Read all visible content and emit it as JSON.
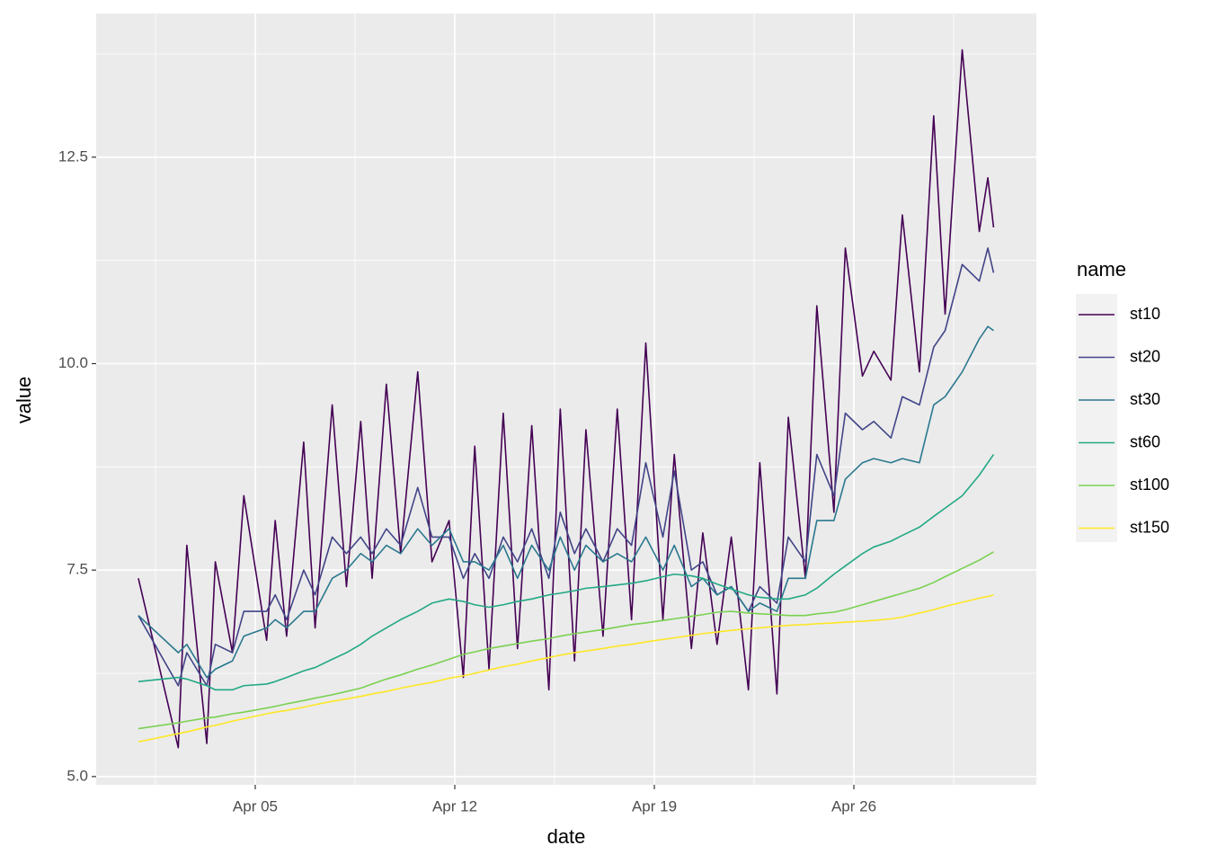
{
  "chart_data": {
    "type": "line",
    "x_label": "date",
    "y_label": "value",
    "legend_title": "name",
    "legend_position": "right",
    "grid": true,
    "xlim": [
      -0.58,
      32.4
    ],
    "ylim": [
      4.9,
      14.24
    ],
    "xticks": [
      {
        "value": 5,
        "label": "Apr 05"
      },
      {
        "value": 12,
        "label": "Apr 12"
      },
      {
        "value": 19,
        "label": "Apr 19"
      },
      {
        "value": 26,
        "label": "Apr 26"
      }
    ],
    "yticks": [
      {
        "value": 5,
        "label": "5.0"
      },
      7.5,
      {
        "value": 10,
        "label": "10.0"
      },
      12.5
    ],
    "x": [
      0.9,
      2.3,
      2.6,
      3.3,
      3.6,
      4.2,
      4.6,
      5.4,
      5.7,
      6.1,
      6.7,
      7.1,
      7.7,
      8.2,
      8.7,
      9.1,
      9.6,
      10.1,
      10.7,
      11.2,
      11.8,
      12.3,
      12.7,
      13.2,
      13.7,
      14.2,
      14.7,
      15.3,
      15.7,
      16.2,
      16.6,
      17.2,
      17.7,
      18.2,
      18.7,
      19.3,
      19.7,
      20.3,
      20.7,
      21.2,
      21.7,
      22.3,
      22.7,
      23.3,
      23.7,
      24.3,
      24.7,
      25.3,
      25.7,
      26.3,
      26.7,
      27.3,
      27.7,
      28.3,
      28.8,
      29.2,
      29.8,
      30.4,
      30.7,
      30.9
    ],
    "series": [
      {
        "name": "st10",
        "color": "#440154",
        "values": [
          7.4,
          5.35,
          7.8,
          5.4,
          7.6,
          6.5,
          8.4,
          6.65,
          8.1,
          6.7,
          9.05,
          6.8,
          9.5,
          7.3,
          9.3,
          7.4,
          9.75,
          7.7,
          9.9,
          7.6,
          8.1,
          6.2,
          9.0,
          6.3,
          9.4,
          6.55,
          9.25,
          6.05,
          9.45,
          6.4,
          9.2,
          6.7,
          9.45,
          6.9,
          10.25,
          6.9,
          8.9,
          6.55,
          7.95,
          6.6,
          7.9,
          6.05,
          8.8,
          6.0,
          9.35,
          7.4,
          10.7,
          8.2,
          11.4,
          9.85,
          10.15,
          9.8,
          11.8,
          9.9,
          13.0,
          10.6,
          13.8,
          11.6,
          12.25,
          11.65
        ]
      },
      {
        "name": "st20",
        "color": "#414487",
        "values": [
          6.95,
          6.1,
          6.5,
          6.1,
          6.6,
          6.5,
          7.0,
          7.0,
          7.2,
          6.9,
          7.5,
          7.2,
          7.9,
          7.7,
          7.9,
          7.7,
          8.0,
          7.8,
          8.5,
          7.9,
          7.9,
          7.4,
          7.7,
          7.4,
          7.9,
          7.6,
          8.0,
          7.4,
          8.2,
          7.7,
          8.0,
          7.6,
          8.0,
          7.8,
          8.8,
          7.9,
          8.7,
          7.5,
          7.6,
          7.2,
          7.3,
          7.0,
          7.3,
          7.1,
          7.9,
          7.6,
          8.9,
          8.4,
          9.4,
          9.2,
          9.3,
          9.1,
          9.6,
          9.5,
          10.2,
          10.4,
          11.2,
          11.0,
          11.4,
          11.1
        ]
      },
      {
        "name": "st30",
        "color": "#2A788E",
        "values": [
          6.95,
          6.5,
          6.6,
          6.2,
          6.3,
          6.4,
          6.7,
          6.8,
          6.9,
          6.8,
          7.0,
          7.0,
          7.4,
          7.5,
          7.7,
          7.6,
          7.8,
          7.7,
          8.0,
          7.8,
          8.0,
          7.6,
          7.6,
          7.5,
          7.8,
          7.4,
          7.8,
          7.5,
          7.9,
          7.5,
          7.8,
          7.6,
          7.7,
          7.6,
          7.9,
          7.5,
          7.8,
          7.3,
          7.4,
          7.2,
          7.3,
          7.0,
          7.1,
          7.0,
          7.4,
          7.4,
          8.1,
          8.1,
          8.6,
          8.8,
          8.85,
          8.8,
          8.85,
          8.8,
          9.5,
          9.6,
          9.9,
          10.3,
          10.45,
          10.4
        ]
      },
      {
        "name": "st60",
        "color": "#22A884",
        "values": [
          6.15,
          6.2,
          6.18,
          6.1,
          6.05,
          6.05,
          6.1,
          6.12,
          6.15,
          6.2,
          6.28,
          6.32,
          6.42,
          6.5,
          6.6,
          6.7,
          6.8,
          6.9,
          7.0,
          7.1,
          7.15,
          7.12,
          7.08,
          7.05,
          7.08,
          7.12,
          7.15,
          7.2,
          7.22,
          7.25,
          7.28,
          7.3,
          7.32,
          7.34,
          7.37,
          7.42,
          7.45,
          7.43,
          7.4,
          7.33,
          7.27,
          7.2,
          7.17,
          7.15,
          7.15,
          7.2,
          7.28,
          7.45,
          7.55,
          7.7,
          7.78,
          7.85,
          7.92,
          8.02,
          8.15,
          8.25,
          8.4,
          8.65,
          8.8,
          8.9
        ]
      },
      {
        "name": "st100",
        "color": "#7AD151",
        "values": [
          5.58,
          5.65,
          5.67,
          5.71,
          5.72,
          5.76,
          5.78,
          5.83,
          5.85,
          5.88,
          5.92,
          5.95,
          5.99,
          6.03,
          6.07,
          6.12,
          6.18,
          6.23,
          6.3,
          6.35,
          6.42,
          6.48,
          6.51,
          6.55,
          6.58,
          6.61,
          6.64,
          6.67,
          6.7,
          6.73,
          6.75,
          6.78,
          6.81,
          6.84,
          6.86,
          6.89,
          6.91,
          6.94,
          6.96,
          6.99,
          7.0,
          6.98,
          6.97,
          6.96,
          6.95,
          6.95,
          6.97,
          6.99,
          7.02,
          7.08,
          7.12,
          7.18,
          7.22,
          7.28,
          7.35,
          7.42,
          7.52,
          7.62,
          7.68,
          7.72
        ]
      },
      {
        "name": "st150",
        "color": "#FDE725",
        "values": [
          5.42,
          5.52,
          5.54,
          5.6,
          5.62,
          5.67,
          5.7,
          5.76,
          5.78,
          5.8,
          5.84,
          5.87,
          5.91,
          5.94,
          5.97,
          6.0,
          6.03,
          6.07,
          6.11,
          6.14,
          6.19,
          6.22,
          6.25,
          6.29,
          6.33,
          6.36,
          6.4,
          6.44,
          6.47,
          6.5,
          6.52,
          6.55,
          6.58,
          6.6,
          6.63,
          6.66,
          6.68,
          6.71,
          6.73,
          6.75,
          6.77,
          6.79,
          6.8,
          6.82,
          6.83,
          6.84,
          6.85,
          6.86,
          6.87,
          6.88,
          6.89,
          6.91,
          6.93,
          6.98,
          7.02,
          7.06,
          7.11,
          7.16,
          7.18,
          7.2
        ]
      }
    ]
  }
}
